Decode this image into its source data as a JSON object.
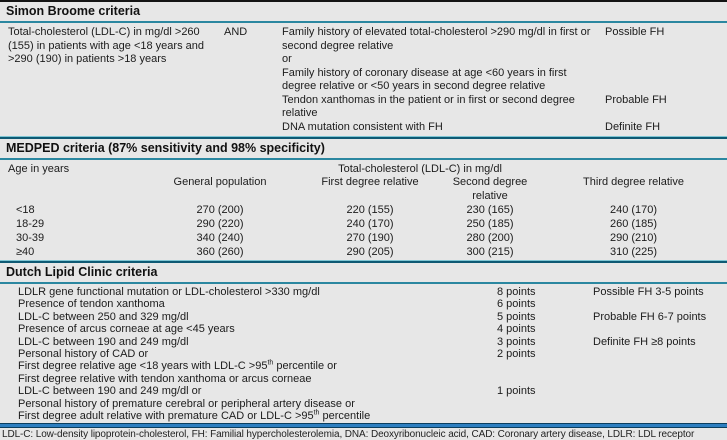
{
  "simon_broome": {
    "title": "Simon Broome criteria",
    "cholesterol_criterion": "Total-cholesterol (LDL-C) in mg/dl >260 (155) in patients with age <18 years and >290 (190) in patients >18 years",
    "conjunction": "AND",
    "rows": [
      {
        "criterion": "Family history of elevated total-cholesterol >290 mg/dl in first or second degree relative",
        "classification": "Possible FH"
      },
      {
        "criterion": "or",
        "classification": ""
      },
      {
        "criterion": "Family history of coronary disease at age <60 years in first degree relative or <50 years in second degree relative",
        "classification": ""
      },
      {
        "criterion": "Tendon xanthomas in the patient or in first or second degree relative",
        "classification": "Probable FH"
      },
      {
        "criterion": "DNA mutation consistent with FH",
        "classification": "Definite FH"
      }
    ]
  },
  "medped": {
    "title": "MEDPED criteria (87% sensitivity and 98% specificity)",
    "age_header": "Age in years",
    "span_header": "Total-cholesterol (LDL-C) in mg/dl",
    "columns": [
      "General population",
      "First degree relative",
      "Second degree relative",
      "Third degree relative"
    ],
    "rows": [
      {
        "age": "<18",
        "general": "270 (200)",
        "first": "220 (155)",
        "second": "230 (165)",
        "third": "240 (170)"
      },
      {
        "age": "18-29",
        "general": "290 (220)",
        "first": "240 (170)",
        "second": "250 (185)",
        "third": "260 (185)"
      },
      {
        "age": "30-39",
        "general": "340 (240)",
        "first": "270 (190)",
        "second": "280 (200)",
        "third": "290 (210)"
      },
      {
        "age": "≥40",
        "general": "360 (260)",
        "first": "290 (205)",
        "second": "300 (215)",
        "third": "310 (225)"
      }
    ]
  },
  "dutch": {
    "title": "Dutch Lipid Clinic criteria",
    "rows": [
      {
        "criterion": "LDLR gene functional mutation or LDL-cholesterol >330 mg/dl",
        "points": "8 points",
        "classification": "Possible FH 3-5 points"
      },
      {
        "criterion": "Presence of tendon xanthoma",
        "points": "6 points",
        "classification": ""
      },
      {
        "criterion": "LDL-C between 250 and 329 mg/dl",
        "points": "5 points",
        "classification": "Probable FH 6-7 points"
      },
      {
        "criterion": "Presence of arcus corneae at age <45 years",
        "points": "4 points",
        "classification": ""
      },
      {
        "criterion": "LDL-C between 190 and 249 mg/dl",
        "points": "3 points",
        "classification": "Definite FH ≥8 points"
      },
      {
        "criterion": "Personal history of CAD or",
        "points": "2 points",
        "classification": ""
      },
      {
        "criterion": "First degree relative age <18 years with LDL-C >95",
        "sup": "th",
        "post": " percentile or",
        "points": "",
        "classification": ""
      },
      {
        "criterion": "First degree relative with tendon xanthoma or arcus corneae",
        "points": "",
        "classification": ""
      },
      {
        "criterion": "LDL-C between 190 and 249 mg/dl or",
        "points": "1 points",
        "classification": ""
      },
      {
        "criterion": "Personal history of premature cerebral or peripheral artery disease or",
        "points": "",
        "classification": ""
      },
      {
        "criterion": "First degree adult relative with premature CAD or LDL-C >95",
        "sup": "th",
        "post": " percentile",
        "points": "",
        "classification": ""
      }
    ]
  },
  "page": {
    "footnote": "LDL-C: Low-density lipoprotein-cholesterol, FH: Familial hypercholesterolemia, DNA: Deoxyribonucleic acid, CAD: Coronary artery disease, LDLR: LDL receptor"
  }
}
